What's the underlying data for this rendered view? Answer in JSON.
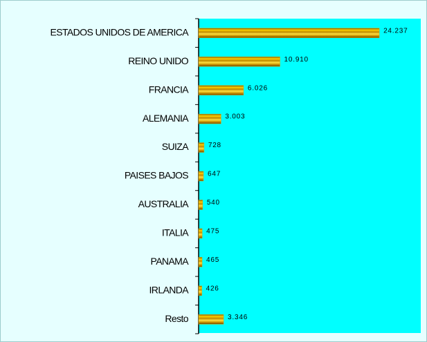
{
  "chart_data": {
    "type": "bar",
    "orientation": "horizontal",
    "categories": [
      "ESTADOS UNIDOS DE AMERICA",
      "REINO UNIDO",
      "FRANCIA",
      "ALEMANIA",
      "SUIZA",
      "PAISES BAJOS",
      "AUSTRALIA",
      "ITALIA",
      "PANAMA",
      "IRLANDA",
      "Resto"
    ],
    "values": [
      24237,
      10910,
      6026,
      3003,
      728,
      647,
      540,
      475,
      465,
      426,
      3346
    ],
    "value_labels": [
      "24.237",
      "10.910",
      "6.026",
      "3.003",
      "728",
      "647",
      "540",
      "475",
      "465",
      "426",
      "3.346"
    ],
    "color": "#e0a800",
    "xlim": [
      0,
      29800
    ]
  }
}
